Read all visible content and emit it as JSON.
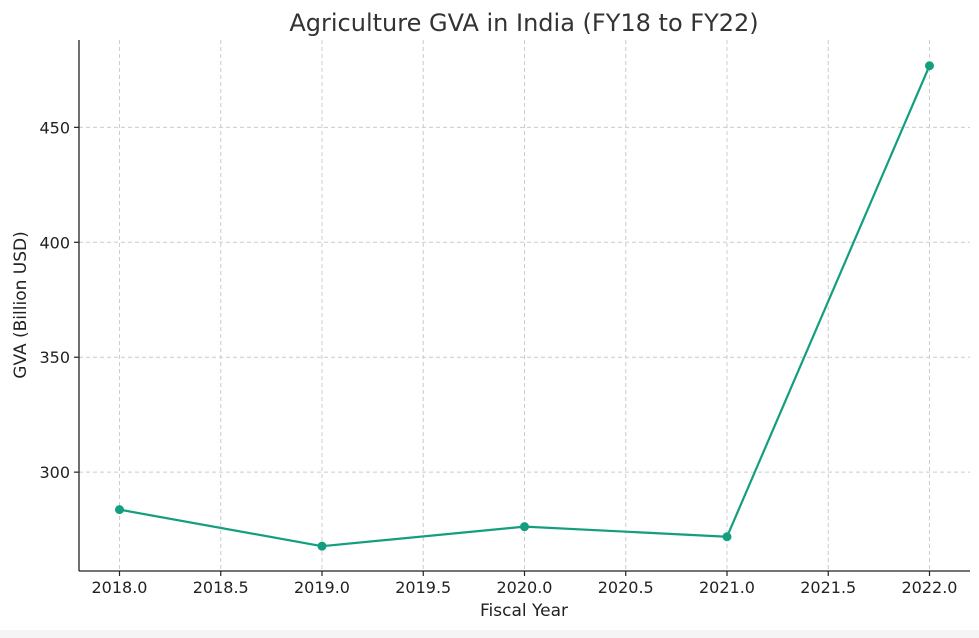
{
  "chart_data": {
    "type": "line",
    "title": "Agriculture GVA in India (FY18 to FY22)",
    "xlabel": "Fiscal Year",
    "ylabel": "GVA (Billion USD)",
    "xlim": [
      2017.8,
      2022.2
    ],
    "ylim": [
      257,
      488
    ],
    "x_ticks": [
      2018.0,
      2018.5,
      2019.0,
      2019.5,
      2020.0,
      2020.5,
      2021.0,
      2021.5,
      2022.0
    ],
    "x_tick_labels": [
      "2018.0",
      "2018.5",
      "2019.0",
      "2019.5",
      "2020.0",
      "2020.5",
      "2021.0",
      "2021.5",
      "2022.0"
    ],
    "y_ticks": [
      300,
      350,
      400,
      450
    ],
    "y_tick_labels": [
      "300",
      "350",
      "400",
      "450"
    ],
    "grid": true,
    "series": [
      {
        "color": "#129e7f",
        "x": [
          2018,
          2019,
          2020,
          2021,
          2022
        ],
        "y": [
          283.7,
          267.8,
          276.3,
          271.9,
          476.8
        ]
      }
    ]
  }
}
